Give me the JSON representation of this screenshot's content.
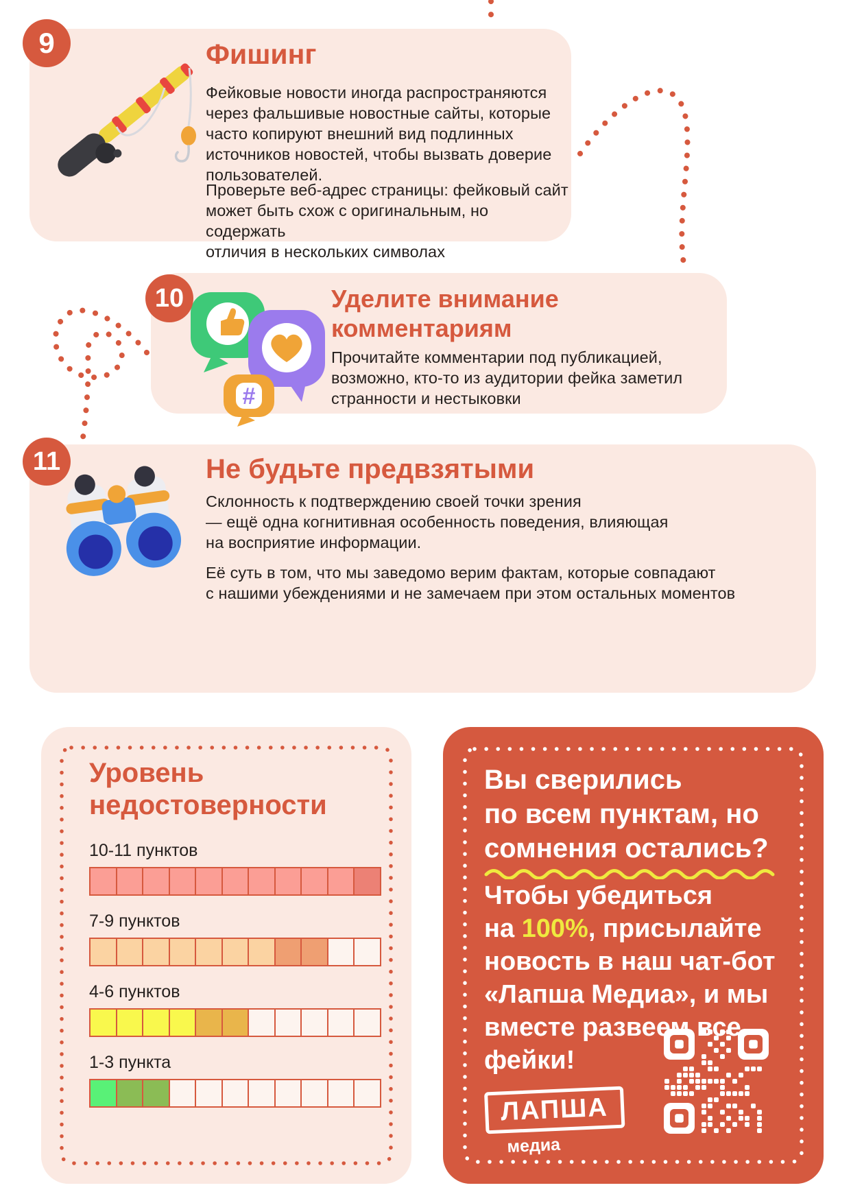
{
  "colors": {
    "accent": "#D6593E",
    "card_bg": "#FBE9E2",
    "cta_bg": "#D5593F",
    "highlight_yellow": "#EFE93F",
    "text": "#241F1D",
    "white": "#FFFFFF"
  },
  "sections": [
    {
      "number": "9",
      "title": "Фишинг",
      "icon": "fishing-rod",
      "paragraph1": "Фейковые новости иногда распространяются\nчерез фальшивые новостные сайты, которые\nчасто копируют внешний вид подлинных\nисточников новостей, чтобы вызвать доверие\nпользователей.",
      "paragraph2": "Проверьте веб-адрес страницы: фейковый сайт\nможет быть схож с оригинальным, но содержать\nотличия в нескольких символах"
    },
    {
      "number": "10",
      "title": "Уделите внимание\nкомментариям",
      "icon": "comment-bubbles",
      "paragraph1": "Прочитайте комментарии под публикацией,\nвозможно, кто-то из аудитории фейка заметил\nстранности и нестыковки"
    },
    {
      "number": "11",
      "title": "Не будьте предвзятыми",
      "icon": "binoculars",
      "paragraph1": "Склонность к подтверждению своей точки зрения\n— ещё одна когнитивная особенность поведения, влияющая\nна восприятие информации.",
      "paragraph2": "Её суть в том, что мы заведомо верим фактам, которые совпадают\nс нашими убеждениями и не замечаем при этом остальных моментов"
    }
  ],
  "level_panel": {
    "title": "Уровень\nнедостоверности",
    "cell_colors": {
      "pink": "#FB9E95",
      "pinkDark": "#EC8175",
      "peach": "#FBD3A2",
      "orange": "#EF9F72",
      "yellow": "#F9F84D",
      "mustard": "#E9B54B",
      "green": "#59F177",
      "olive": "#8BBC55",
      "empty": "#FDF4EF"
    },
    "rows": [
      {
        "label": "10-11 пунктов",
        "cells": [
          "pink",
          "pink",
          "pink",
          "pink",
          "pink",
          "pink",
          "pink",
          "pink",
          "pink",
          "pink",
          "pinkDark"
        ]
      },
      {
        "label": "7-9 пунктов",
        "cells": [
          "peach",
          "peach",
          "peach",
          "peach",
          "peach",
          "peach",
          "peach",
          "orange",
          "orange",
          "empty",
          "empty"
        ]
      },
      {
        "label": "4-6 пунктов",
        "cells": [
          "yellow",
          "yellow",
          "yellow",
          "yellow",
          "mustard",
          "mustard",
          "empty",
          "empty",
          "empty",
          "empty",
          "empty"
        ]
      },
      {
        "label": "1-3 пункта",
        "cells": [
          "green",
          "olive",
          "olive",
          "empty",
          "empty",
          "empty",
          "empty",
          "empty",
          "empty",
          "empty",
          "empty"
        ]
      }
    ]
  },
  "cta_panel": {
    "heading": "Вы сверились\nпо всем пунктам, но\nсомнения остались?",
    "body_before": "Чтобы убедиться\nна ",
    "body_highlight": "100%",
    "body_after": ", присылайте\nновость в наш чат-бот\n«Лапша Медиа», и мы\nвместе развеем все\nфейки!",
    "logo_title": "ЛАПША",
    "logo_subtitle": "медиа"
  }
}
